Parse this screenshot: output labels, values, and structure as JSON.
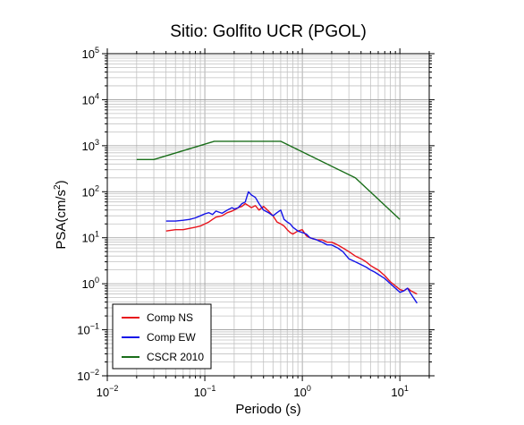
{
  "chart_data": {
    "type": "line",
    "title": "Sitio: Golfito UCR (PGOL)",
    "xlabel": "Periodo (s)",
    "ylabel_base": "PSA(cm/s",
    "ylabel_sup": "2",
    "ylabel_close": ")",
    "x_scale": "log",
    "y_scale": "log",
    "xlim": [
      0.01,
      20
    ],
    "ylim": [
      0.01,
      100000
    ],
    "grid": true,
    "legend_position": "bottom-left",
    "x_ticks": [
      {
        "value": 0.01,
        "base": "10",
        "exp": "−2"
      },
      {
        "value": 0.1,
        "base": "10",
        "exp": "−1"
      },
      {
        "value": 1,
        "base": "10",
        "exp": "0"
      },
      {
        "value": 10,
        "base": "10",
        "exp": "1"
      }
    ],
    "y_ticks": [
      {
        "value": 0.01,
        "base": "10",
        "exp": "−2"
      },
      {
        "value": 0.1,
        "base": "10",
        "exp": "−1"
      },
      {
        "value": 1,
        "base": "10",
        "exp": "0"
      },
      {
        "value": 10,
        "base": "10",
        "exp": "1"
      },
      {
        "value": 100,
        "base": "10",
        "exp": "2"
      },
      {
        "value": 1000,
        "base": "10",
        "exp": "3"
      },
      {
        "value": 10000,
        "base": "10",
        "exp": "4"
      },
      {
        "value": 100000,
        "base": "10",
        "exp": "5"
      }
    ],
    "series": [
      {
        "name": "Comp NS",
        "color": "#e8141c",
        "x": [
          0.04,
          0.05,
          0.06,
          0.07,
          0.08,
          0.09,
          0.1,
          0.11,
          0.12,
          0.13,
          0.15,
          0.17,
          0.19,
          0.2,
          0.22,
          0.24,
          0.26,
          0.28,
          0.3,
          0.33,
          0.36,
          0.4,
          0.45,
          0.5,
          0.55,
          0.6,
          0.65,
          0.7,
          0.75,
          0.8,
          0.9,
          1.0,
          1.1,
          1.2,
          1.4,
          1.6,
          1.8,
          2.0,
          2.3,
          2.6,
          3.0,
          3.5,
          4.0,
          4.5,
          5.0,
          5.5,
          6.0,
          7.0,
          8.0,
          9.0,
          10,
          11,
          12,
          13,
          15
        ],
        "values": [
          14,
          15,
          15,
          16,
          17,
          18,
          20,
          22,
          25,
          28,
          30,
          35,
          38,
          40,
          45,
          48,
          55,
          50,
          45,
          50,
          40,
          48,
          38,
          30,
          22,
          20,
          18,
          15,
          13,
          12,
          14,
          15,
          11,
          10,
          9,
          9,
          8,
          8,
          7,
          6,
          5,
          4,
          3.5,
          3,
          2.5,
          2.2,
          2,
          1.5,
          1.1,
          0.9,
          0.75,
          0.7,
          0.8,
          0.7,
          0.6
        ]
      },
      {
        "name": "Comp EW",
        "color": "#1414e8",
        "x": [
          0.04,
          0.05,
          0.06,
          0.07,
          0.08,
          0.09,
          0.1,
          0.11,
          0.12,
          0.13,
          0.15,
          0.17,
          0.19,
          0.2,
          0.22,
          0.24,
          0.26,
          0.28,
          0.3,
          0.33,
          0.36,
          0.4,
          0.45,
          0.5,
          0.55,
          0.6,
          0.65,
          0.7,
          0.75,
          0.8,
          0.9,
          1.0,
          1.1,
          1.2,
          1.4,
          1.6,
          1.8,
          2.0,
          2.3,
          2.6,
          3.0,
          3.5,
          4.0,
          4.5,
          5.0,
          5.5,
          6.0,
          7.0,
          8.0,
          9.0,
          10,
          11,
          12,
          13,
          15
        ],
        "values": [
          23,
          23,
          24,
          25,
          27,
          30,
          33,
          35,
          32,
          38,
          34,
          40,
          45,
          42,
          45,
          55,
          60,
          100,
          85,
          75,
          55,
          40,
          35,
          30,
          35,
          40,
          25,
          22,
          20,
          17,
          14,
          13,
          12,
          10,
          9,
          8,
          7,
          7,
          6,
          5,
          3.5,
          3,
          2.6,
          2.3,
          2,
          1.8,
          1.6,
          1.3,
          1.0,
          0.8,
          0.65,
          0.7,
          0.8,
          0.6,
          0.38
        ]
      },
      {
        "name": "CSCR 2010",
        "color": "#1a6e1a",
        "x": [
          0.02,
          0.03,
          0.125,
          0.6,
          3.5,
          10
        ],
        "values": [
          500,
          500,
          1250,
          1250,
          200,
          25
        ]
      }
    ]
  }
}
